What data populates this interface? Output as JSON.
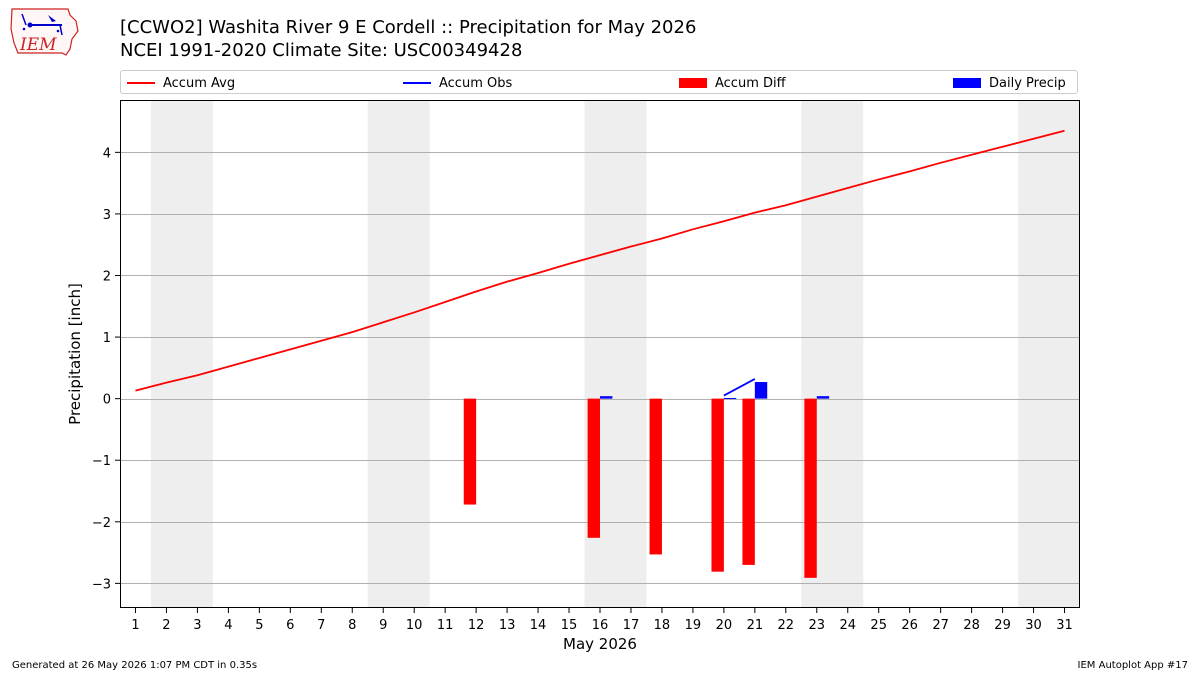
{
  "header": {
    "title_line1": "[CCWO2] Washita River 9 E Cordell :: Precipitation for May 2026",
    "title_line2": "NCEI 1991-2020 Climate Site: USC00349428"
  },
  "logo": {
    "text": "IEM"
  },
  "footer": {
    "left": "Generated at 26 May 2026 1:07 PM CDT in 0.35s",
    "right": "IEM Autoplot App #17"
  },
  "legend": [
    {
      "label": "Accum Avg",
      "color": "#ff0000",
      "kind": "line"
    },
    {
      "label": "Accum Obs",
      "color": "#0000ff",
      "kind": "line"
    },
    {
      "label": "Accum Diff",
      "color": "#ff0000",
      "kind": "box"
    },
    {
      "label": "Daily Precip",
      "color": "#0000ff",
      "kind": "box"
    }
  ],
  "chart_data": {
    "type": "bar",
    "xlabel": "May 2026",
    "ylabel": "Precipitation [inch]",
    "x": [
      1,
      2,
      3,
      4,
      5,
      6,
      7,
      8,
      9,
      10,
      11,
      12,
      13,
      14,
      15,
      16,
      17,
      18,
      19,
      20,
      21,
      22,
      23,
      24,
      25,
      26,
      27,
      28,
      29,
      30,
      31
    ],
    "xlim": [
      0.5,
      31.5
    ],
    "ylim": [
      -3.4,
      4.85
    ],
    "yticks": [
      -3,
      -2,
      -1,
      0,
      1,
      2,
      3,
      4
    ],
    "weekend_days": [
      2,
      3,
      9,
      10,
      16,
      17,
      23,
      24,
      30,
      31
    ],
    "grid": "horizontal",
    "legend_position": "top",
    "series": [
      {
        "name": "Accum Avg",
        "type": "line",
        "color": "#ff0000",
        "x": [
          1,
          2,
          3,
          4,
          5,
          6,
          7,
          8,
          9,
          10,
          11,
          12,
          13,
          14,
          15,
          16,
          17,
          18,
          19,
          20,
          21,
          22,
          23,
          24,
          25,
          26,
          27,
          28,
          29,
          30,
          31
        ],
        "values": [
          0.13,
          0.26,
          0.38,
          0.52,
          0.66,
          0.8,
          0.94,
          1.08,
          1.24,
          1.4,
          1.57,
          1.74,
          1.9,
          2.04,
          2.19,
          2.33,
          2.47,
          2.6,
          2.75,
          2.88,
          3.02,
          3.14,
          3.28,
          3.42,
          3.56,
          3.69,
          3.83,
          3.96,
          4.09,
          4.22,
          4.35
        ]
      },
      {
        "name": "Accum Obs",
        "type": "line",
        "color": "#0000ff",
        "x": [
          20,
          21
        ],
        "values": [
          0.05,
          0.32
        ]
      },
      {
        "name": "Accum Diff",
        "type": "bar",
        "color": "#ff0000",
        "x": [
          12,
          16,
          18,
          20,
          21,
          23
        ],
        "values": [
          -1.72,
          -2.26,
          -2.53,
          -2.81,
          -2.7,
          -2.91
        ]
      },
      {
        "name": "Daily Precip",
        "type": "bar",
        "color": "#0000ff",
        "x": [
          16,
          20,
          21,
          23
        ],
        "values": [
          0.04,
          0.01,
          0.27,
          0.04
        ]
      }
    ]
  }
}
